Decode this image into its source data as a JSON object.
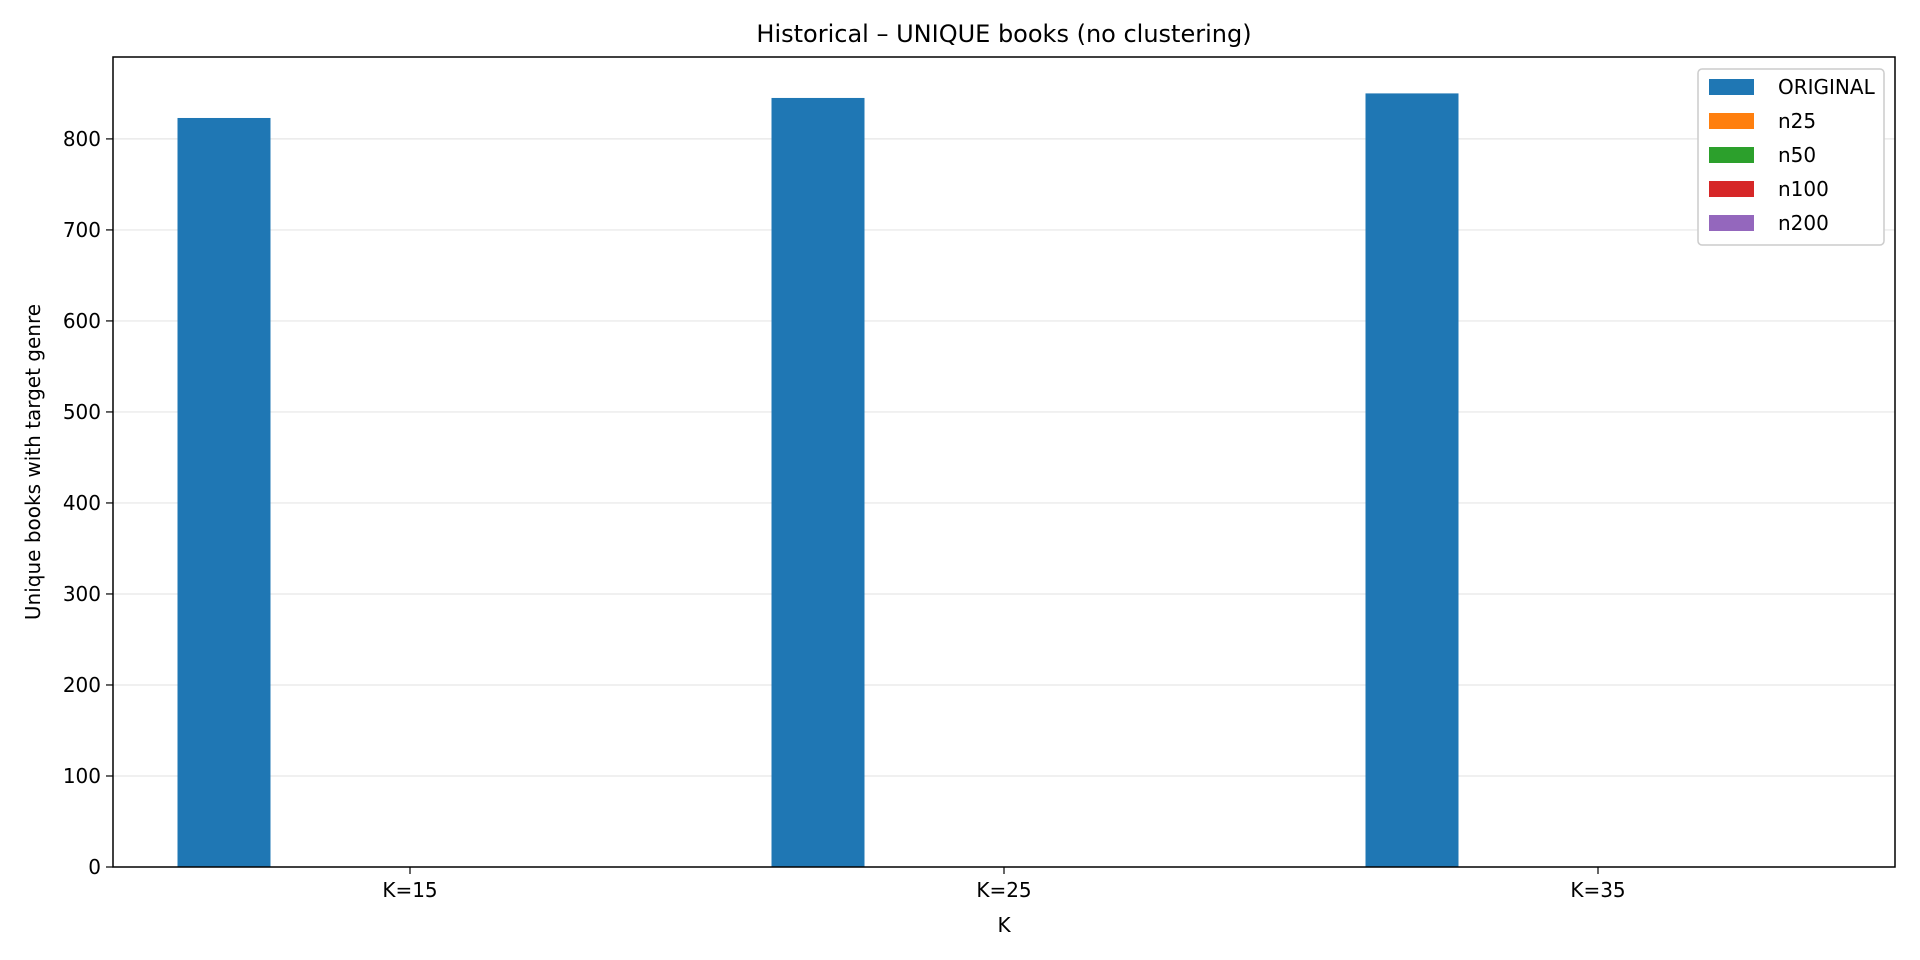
{
  "chart_data": {
    "type": "bar",
    "title": "Historical – UNIQUE books (no clustering)",
    "xlabel": "K",
    "ylabel": "Unique books with target genre",
    "categories": [
      "K=15",
      "K=25",
      "K=35"
    ],
    "ylim": [
      0,
      890
    ],
    "yticks": [
      0,
      100,
      200,
      300,
      400,
      500,
      600,
      700,
      800
    ],
    "grid": "y",
    "legend_position": "top-right",
    "series": [
      {
        "name": "ORIGINAL",
        "color": "#1f77b4",
        "values": [
          823,
          845,
          850
        ]
      },
      {
        "name": "n25",
        "color": "#ff7f0e",
        "values": [
          0,
          0,
          0
        ]
      },
      {
        "name": "n50",
        "color": "#2ca02c",
        "values": [
          0,
          0,
          0
        ]
      },
      {
        "name": "n100",
        "color": "#d62728",
        "values": [
          0,
          0,
          0
        ]
      },
      {
        "name": "n200",
        "color": "#9467bd",
        "values": [
          0,
          0,
          0
        ]
      }
    ]
  }
}
